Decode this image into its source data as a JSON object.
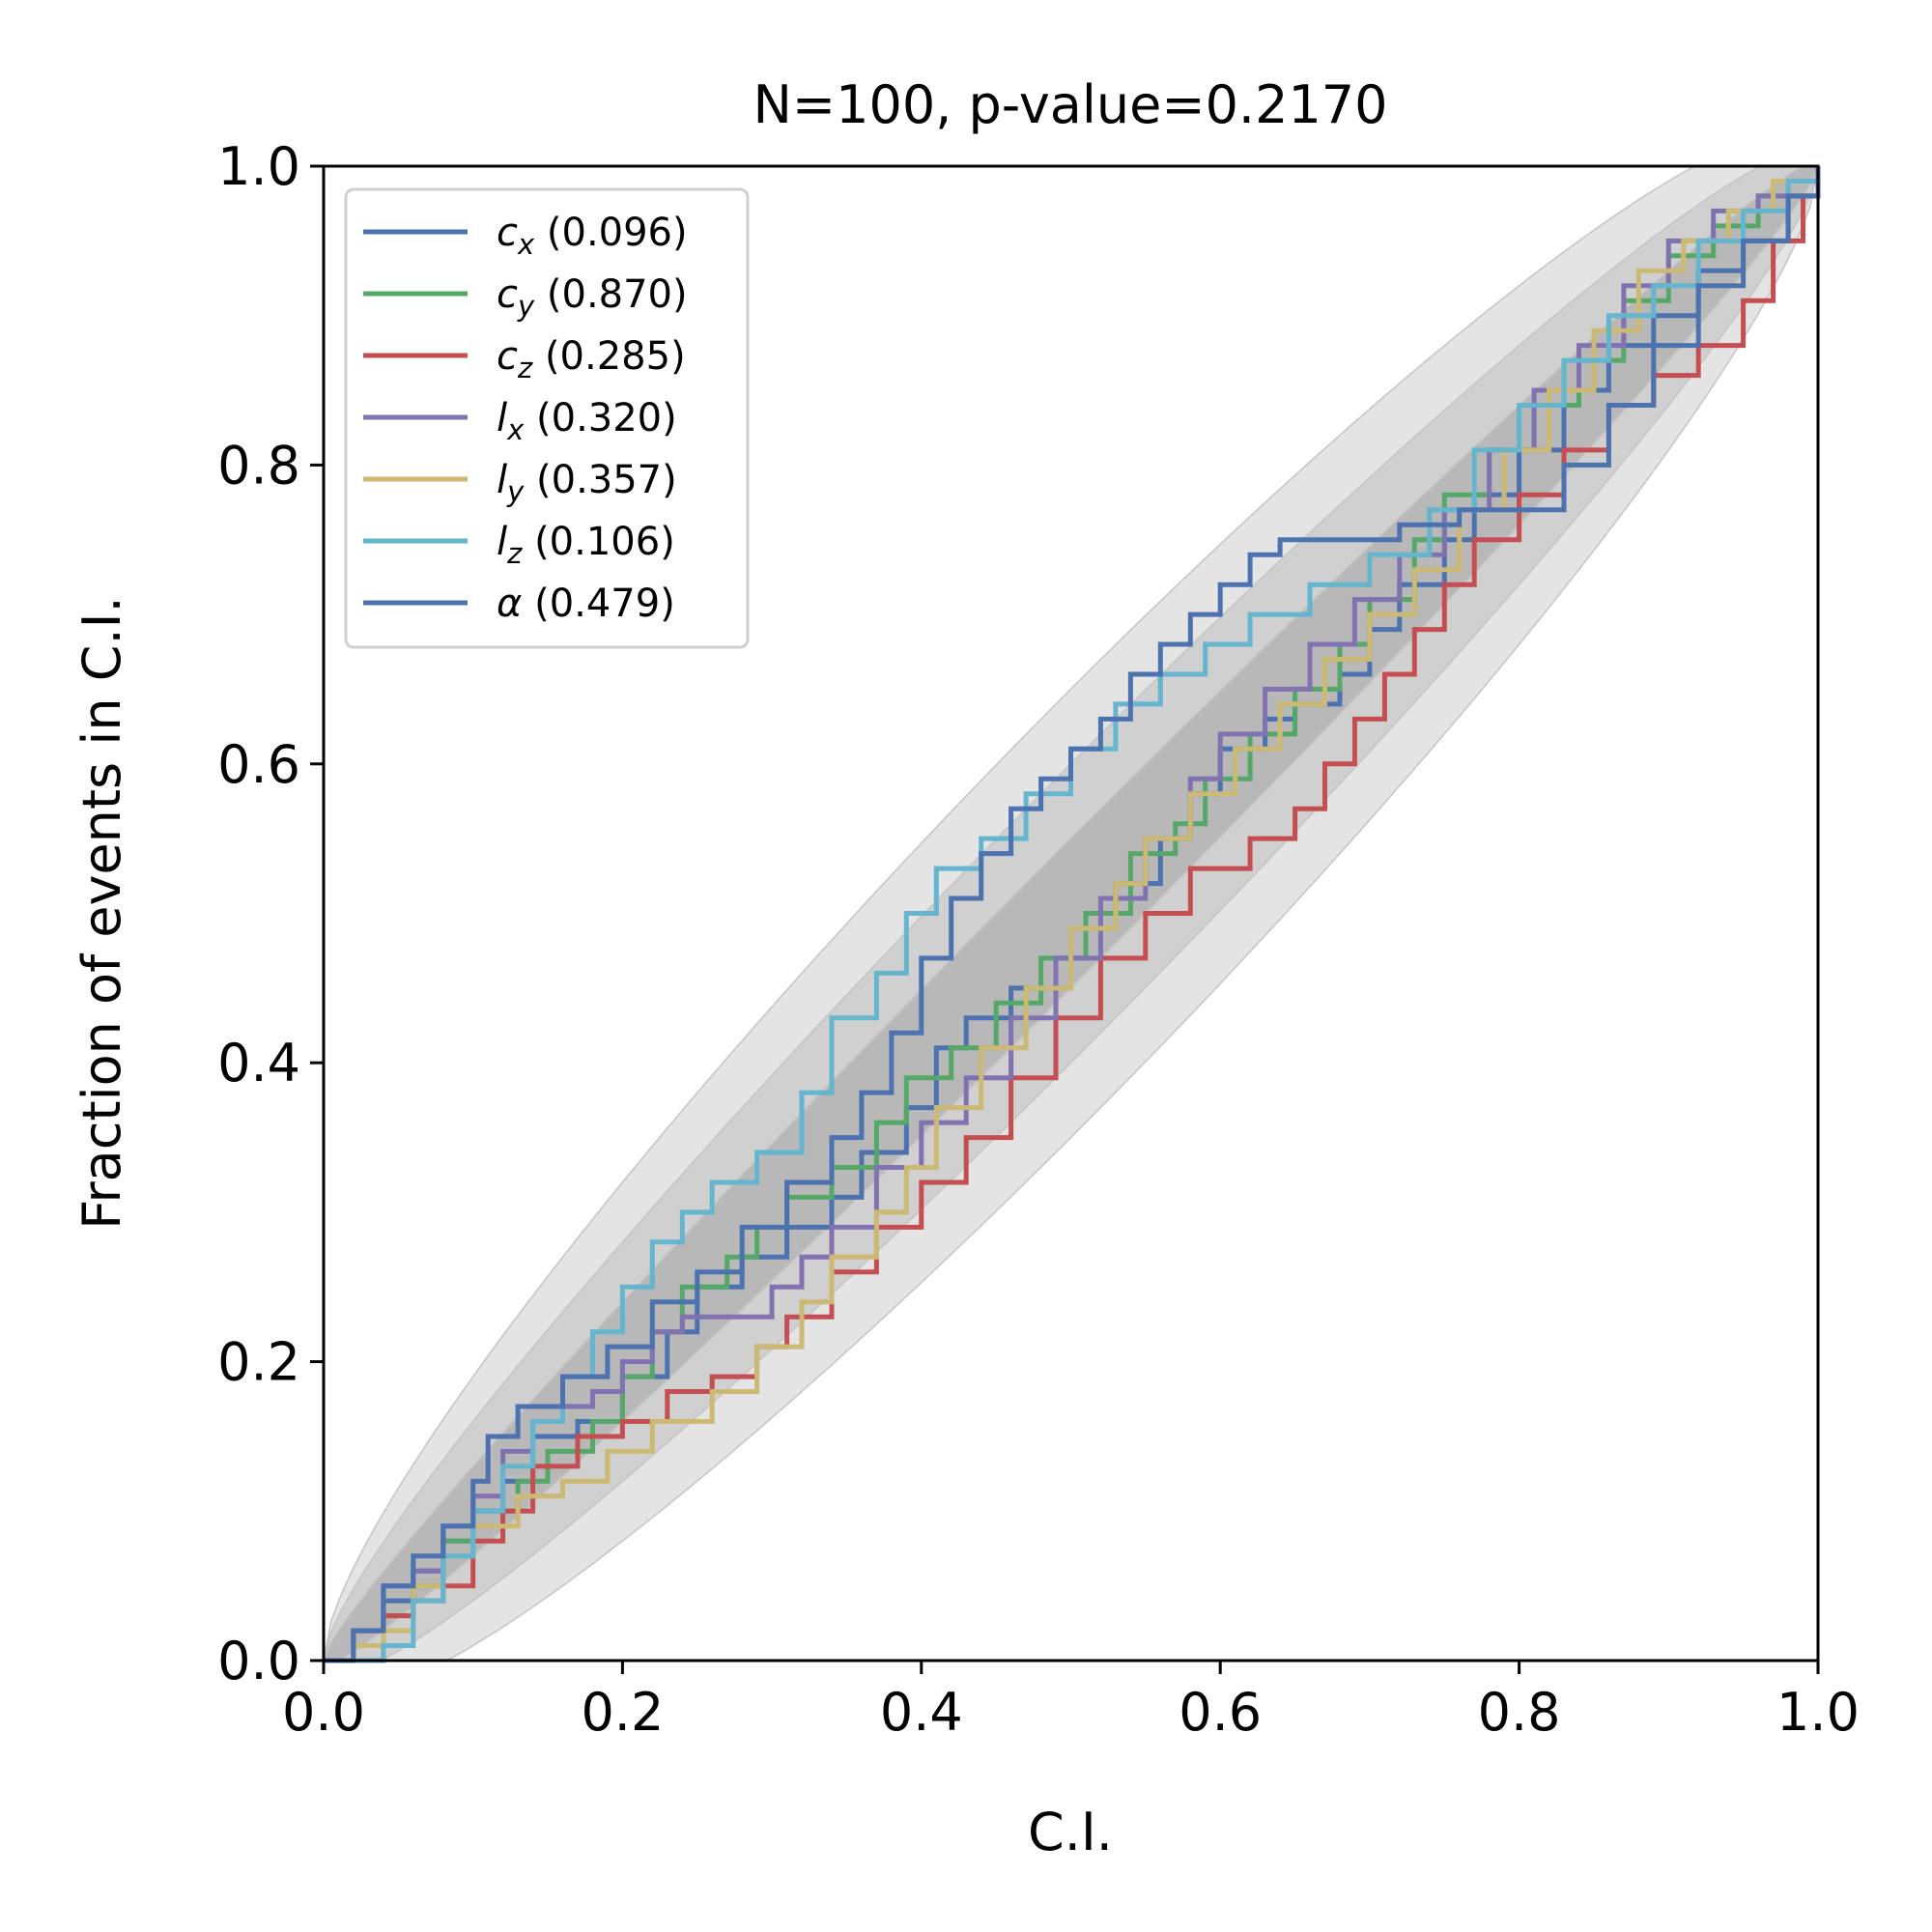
{
  "chart_data": {
    "type": "line",
    "title": "N=100, p-value=0.2170",
    "xlabel": "C.I.",
    "ylabel": "Fraction of events in C.I.",
    "xlim": [
      0,
      1
    ],
    "ylim": [
      0,
      1
    ],
    "xticks": [
      "0.0",
      "0.2",
      "0.4",
      "0.6",
      "0.8",
      "1.0"
    ],
    "yticks": [
      "0.0",
      "0.2",
      "0.4",
      "0.6",
      "0.8",
      "1.0"
    ],
    "grid": false,
    "legend_position": "top-left",
    "n": 100,
    "bands": [
      {
        "name": "68%",
        "color": "#b8b8b8",
        "halfwidth_scale": 1.0
      },
      {
        "name": "95%",
        "color": "#d0d0d0",
        "halfwidth_scale": 2.0
      },
      {
        "name": "99.7%",
        "color": "#e4e4e4",
        "halfwidth_scale": 3.0
      }
    ],
    "series": [
      {
        "symbol": "c",
        "sub": "x",
        "pvalue": "(0.096)",
        "color": "#4c72b0",
        "points": [
          [
            0,
            0
          ],
          [
            0.02,
            0.02
          ],
          [
            0.04,
            0.04
          ],
          [
            0.06,
            0.06
          ],
          [
            0.08,
            0.08
          ],
          [
            0.1,
            0.1
          ],
          [
            0.12,
            0.12
          ],
          [
            0.14,
            0.15
          ],
          [
            0.17,
            0.16
          ],
          [
            0.2,
            0.19
          ],
          [
            0.23,
            0.22
          ],
          [
            0.25,
            0.25
          ],
          [
            0.28,
            0.27
          ],
          [
            0.31,
            0.29
          ],
          [
            0.34,
            0.31
          ],
          [
            0.36,
            0.34
          ],
          [
            0.39,
            0.37
          ],
          [
            0.41,
            0.41
          ],
          [
            0.43,
            0.43
          ],
          [
            0.46,
            0.45
          ],
          [
            0.49,
            0.47
          ],
          [
            0.51,
            0.5
          ],
          [
            0.53,
            0.52
          ],
          [
            0.56,
            0.55
          ],
          [
            0.58,
            0.58
          ],
          [
            0.6,
            0.61
          ],
          [
            0.63,
            0.63
          ],
          [
            0.65,
            0.64
          ],
          [
            0.68,
            0.66
          ],
          [
            0.7,
            0.69
          ],
          [
            0.72,
            0.72
          ],
          [
            0.75,
            0.75
          ],
          [
            0.77,
            0.78
          ],
          [
            0.8,
            0.81
          ],
          [
            0.83,
            0.85
          ],
          [
            0.86,
            0.88
          ],
          [
            0.89,
            0.9
          ],
          [
            0.92,
            0.93
          ],
          [
            0.95,
            0.95
          ],
          [
            0.98,
            0.98
          ],
          [
            1,
            1
          ]
        ]
      },
      {
        "symbol": "c",
        "sub": "y",
        "pvalue": "(0.870)",
        "color": "#55a868",
        "points": [
          [
            0,
            0
          ],
          [
            0.02,
            0.01
          ],
          [
            0.04,
            0.03
          ],
          [
            0.06,
            0.05
          ],
          [
            0.08,
            0.08
          ],
          [
            0.1,
            0.1
          ],
          [
            0.13,
            0.12
          ],
          [
            0.15,
            0.14
          ],
          [
            0.18,
            0.16
          ],
          [
            0.2,
            0.19
          ],
          [
            0.22,
            0.22
          ],
          [
            0.24,
            0.25
          ],
          [
            0.27,
            0.27
          ],
          [
            0.29,
            0.29
          ],
          [
            0.31,
            0.31
          ],
          [
            0.34,
            0.33
          ],
          [
            0.37,
            0.36
          ],
          [
            0.39,
            0.39
          ],
          [
            0.42,
            0.41
          ],
          [
            0.45,
            0.44
          ],
          [
            0.48,
            0.47
          ],
          [
            0.51,
            0.5
          ],
          [
            0.54,
            0.54
          ],
          [
            0.57,
            0.56
          ],
          [
            0.59,
            0.59
          ],
          [
            0.62,
            0.62
          ],
          [
            0.65,
            0.65
          ],
          [
            0.68,
            0.68
          ],
          [
            0.7,
            0.71
          ],
          [
            0.73,
            0.75
          ],
          [
            0.75,
            0.78
          ],
          [
            0.78,
            0.81
          ],
          [
            0.81,
            0.84
          ],
          [
            0.84,
            0.87
          ],
          [
            0.87,
            0.91
          ],
          [
            0.9,
            0.94
          ],
          [
            0.93,
            0.96
          ],
          [
            0.96,
            0.98
          ],
          [
            0.98,
            0.99
          ],
          [
            1,
            1
          ]
        ]
      },
      {
        "symbol": "c",
        "sub": "z",
        "pvalue": "(0.285)",
        "color": "#c44e52",
        "points": [
          [
            0,
            0
          ],
          [
            0.02,
            0.02
          ],
          [
            0.04,
            0.03
          ],
          [
            0.06,
            0.04
          ],
          [
            0.08,
            0.05
          ],
          [
            0.1,
            0.08
          ],
          [
            0.12,
            0.1
          ],
          [
            0.14,
            0.13
          ],
          [
            0.17,
            0.15
          ],
          [
            0.2,
            0.16
          ],
          [
            0.23,
            0.18
          ],
          [
            0.26,
            0.19
          ],
          [
            0.29,
            0.21
          ],
          [
            0.31,
            0.23
          ],
          [
            0.34,
            0.26
          ],
          [
            0.37,
            0.29
          ],
          [
            0.4,
            0.32
          ],
          [
            0.43,
            0.35
          ],
          [
            0.46,
            0.39
          ],
          [
            0.49,
            0.43
          ],
          [
            0.52,
            0.47
          ],
          [
            0.55,
            0.5
          ],
          [
            0.58,
            0.53
          ],
          [
            0.62,
            0.55
          ],
          [
            0.65,
            0.57
          ],
          [
            0.67,
            0.6
          ],
          [
            0.69,
            0.63
          ],
          [
            0.71,
            0.66
          ],
          [
            0.73,
            0.69
          ],
          [
            0.75,
            0.72
          ],
          [
            0.77,
            0.75
          ],
          [
            0.8,
            0.78
          ],
          [
            0.83,
            0.81
          ],
          [
            0.86,
            0.84
          ],
          [
            0.89,
            0.86
          ],
          [
            0.92,
            0.88
          ],
          [
            0.95,
            0.91
          ],
          [
            0.97,
            0.95
          ],
          [
            0.99,
            0.98
          ],
          [
            1,
            1
          ]
        ]
      },
      {
        "symbol": "l",
        "sub": "x",
        "pvalue": "(0.320)",
        "color": "#8172b2",
        "points": [
          [
            0,
            0
          ],
          [
            0.02,
            0.02
          ],
          [
            0.04,
            0.05
          ],
          [
            0.06,
            0.06
          ],
          [
            0.08,
            0.09
          ],
          [
            0.1,
            0.11
          ],
          [
            0.12,
            0.14
          ],
          [
            0.14,
            0.16
          ],
          [
            0.16,
            0.17
          ],
          [
            0.18,
            0.18
          ],
          [
            0.2,
            0.2
          ],
          [
            0.22,
            0.22
          ],
          [
            0.24,
            0.23
          ],
          [
            0.28,
            0.23
          ],
          [
            0.3,
            0.25
          ],
          [
            0.32,
            0.27
          ],
          [
            0.34,
            0.29
          ],
          [
            0.37,
            0.33
          ],
          [
            0.4,
            0.36
          ],
          [
            0.43,
            0.39
          ],
          [
            0.46,
            0.43
          ],
          [
            0.49,
            0.47
          ],
          [
            0.52,
            0.51
          ],
          [
            0.55,
            0.55
          ],
          [
            0.58,
            0.59
          ],
          [
            0.6,
            0.62
          ],
          [
            0.63,
            0.65
          ],
          [
            0.66,
            0.68
          ],
          [
            0.69,
            0.71
          ],
          [
            0.72,
            0.74
          ],
          [
            0.75,
            0.77
          ],
          [
            0.78,
            0.81
          ],
          [
            0.81,
            0.85
          ],
          [
            0.84,
            0.88
          ],
          [
            0.87,
            0.92
          ],
          [
            0.9,
            0.95
          ],
          [
            0.93,
            0.97
          ],
          [
            0.96,
            0.98
          ],
          [
            0.98,
            0.99
          ],
          [
            1,
            1
          ]
        ]
      },
      {
        "symbol": "l",
        "sub": "y",
        "pvalue": "(0.357)",
        "color": "#ccb974",
        "points": [
          [
            0,
            0
          ],
          [
            0.02,
            0.01
          ],
          [
            0.04,
            0.02
          ],
          [
            0.06,
            0.05
          ],
          [
            0.08,
            0.07
          ],
          [
            0.1,
            0.09
          ],
          [
            0.13,
            0.11
          ],
          [
            0.16,
            0.12
          ],
          [
            0.19,
            0.14
          ],
          [
            0.22,
            0.16
          ],
          [
            0.26,
            0.18
          ],
          [
            0.29,
            0.21
          ],
          [
            0.32,
            0.24
          ],
          [
            0.34,
            0.27
          ],
          [
            0.37,
            0.3
          ],
          [
            0.39,
            0.33
          ],
          [
            0.41,
            0.37
          ],
          [
            0.44,
            0.41
          ],
          [
            0.47,
            0.45
          ],
          [
            0.5,
            0.49
          ],
          [
            0.53,
            0.52
          ],
          [
            0.55,
            0.55
          ],
          [
            0.58,
            0.58
          ],
          [
            0.61,
            0.61
          ],
          [
            0.64,
            0.64
          ],
          [
            0.67,
            0.67
          ],
          [
            0.7,
            0.7
          ],
          [
            0.73,
            0.73
          ],
          [
            0.76,
            0.77
          ],
          [
            0.79,
            0.81
          ],
          [
            0.82,
            0.85
          ],
          [
            0.85,
            0.89
          ],
          [
            0.88,
            0.93
          ],
          [
            0.91,
            0.95
          ],
          [
            0.94,
            0.97
          ],
          [
            0.97,
            0.99
          ],
          [
            1,
            1
          ]
        ]
      },
      {
        "symbol": "l",
        "sub": "z",
        "pvalue": "(0.106)",
        "color": "#64b5cd",
        "points": [
          [
            0,
            0
          ],
          [
            0.02,
            0.0
          ],
          [
            0.04,
            0.01
          ],
          [
            0.06,
            0.04
          ],
          [
            0.08,
            0.07
          ],
          [
            0.1,
            0.1
          ],
          [
            0.12,
            0.13
          ],
          [
            0.14,
            0.16
          ],
          [
            0.16,
            0.19
          ],
          [
            0.18,
            0.22
          ],
          [
            0.2,
            0.25
          ],
          [
            0.22,
            0.28
          ],
          [
            0.24,
            0.3
          ],
          [
            0.26,
            0.32
          ],
          [
            0.29,
            0.34
          ],
          [
            0.32,
            0.38
          ],
          [
            0.34,
            0.43
          ],
          [
            0.37,
            0.46
          ],
          [
            0.39,
            0.5
          ],
          [
            0.41,
            0.53
          ],
          [
            0.44,
            0.55
          ],
          [
            0.47,
            0.58
          ],
          [
            0.5,
            0.61
          ],
          [
            0.53,
            0.64
          ],
          [
            0.56,
            0.66
          ],
          [
            0.59,
            0.68
          ],
          [
            0.62,
            0.7
          ],
          [
            0.66,
            0.72
          ],
          [
            0.7,
            0.74
          ],
          [
            0.74,
            0.77
          ],
          [
            0.77,
            0.81
          ],
          [
            0.8,
            0.84
          ],
          [
            0.83,
            0.87
          ],
          [
            0.86,
            0.9
          ],
          [
            0.89,
            0.92
          ],
          [
            0.92,
            0.95
          ],
          [
            0.95,
            0.97
          ],
          [
            0.98,
            0.99
          ],
          [
            1,
            1
          ]
        ]
      },
      {
        "symbol": "α",
        "sub": "",
        "pvalue": "(0.479)",
        "color": "#4c72b0",
        "points": [
          [
            0,
            0
          ],
          [
            0.02,
            0.02
          ],
          [
            0.04,
            0.05
          ],
          [
            0.06,
            0.07
          ],
          [
            0.08,
            0.09
          ],
          [
            0.1,
            0.12
          ],
          [
            0.11,
            0.15
          ],
          [
            0.13,
            0.17
          ],
          [
            0.16,
            0.19
          ],
          [
            0.19,
            0.21
          ],
          [
            0.22,
            0.24
          ],
          [
            0.25,
            0.26
          ],
          [
            0.28,
            0.29
          ],
          [
            0.31,
            0.32
          ],
          [
            0.34,
            0.35
          ],
          [
            0.36,
            0.38
          ],
          [
            0.38,
            0.42
          ],
          [
            0.4,
            0.47
          ],
          [
            0.42,
            0.51
          ],
          [
            0.44,
            0.54
          ],
          [
            0.46,
            0.57
          ],
          [
            0.48,
            0.59
          ],
          [
            0.5,
            0.61
          ],
          [
            0.52,
            0.63
          ],
          [
            0.54,
            0.66
          ],
          [
            0.56,
            0.68
          ],
          [
            0.58,
            0.7
          ],
          [
            0.6,
            0.72
          ],
          [
            0.62,
            0.74
          ],
          [
            0.64,
            0.75
          ],
          [
            0.68,
            0.75
          ],
          [
            0.72,
            0.76
          ],
          [
            0.76,
            0.77
          ],
          [
            0.8,
            0.77
          ],
          [
            0.83,
            0.8
          ],
          [
            0.86,
            0.84
          ],
          [
            0.89,
            0.88
          ],
          [
            0.92,
            0.92
          ],
          [
            0.95,
            0.95
          ],
          [
            0.98,
            0.98
          ],
          [
            1,
            1
          ]
        ]
      }
    ]
  }
}
